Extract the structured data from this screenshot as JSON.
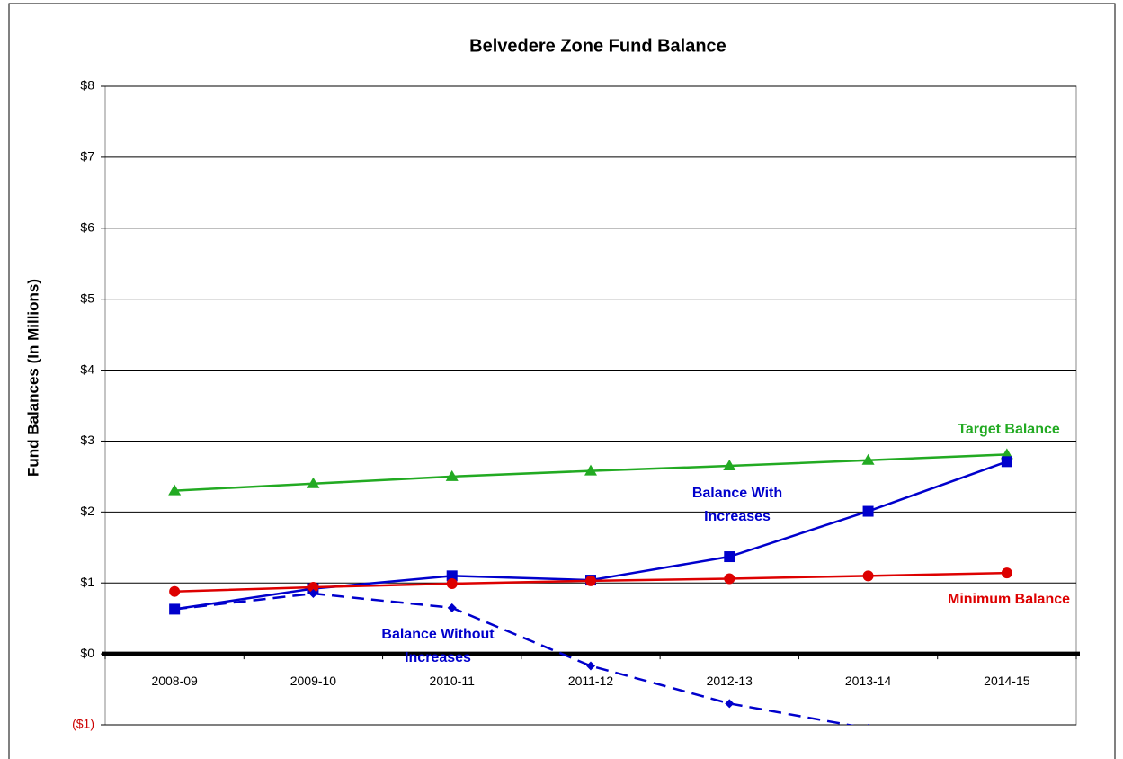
{
  "chart_data": {
    "type": "line",
    "title": "Belvedere Zone  Fund Balance",
    "y_label": "Fund Balances (In Millions)",
    "categories": [
      "2008-09",
      "2009-10",
      "2010-11",
      "2011-12",
      "2012-13",
      "2013-14",
      "2014-15"
    ],
    "series": [
      {
        "name": "Target Balance",
        "color": "#22aa22",
        "marker": "triangle",
        "dashed": false,
        "values": [
          2.3,
          2.4,
          2.5,
          2.58,
          2.65,
          2.73,
          2.81
        ]
      },
      {
        "name": "Balance With Increases",
        "color": "#0000cc",
        "marker": "square",
        "dashed": false,
        "values": [
          0.63,
          0.92,
          1.1,
          1.04,
          1.37,
          2.01,
          2.71
        ]
      },
      {
        "name": "Minimum Balance",
        "color": "#dd0000",
        "marker": "circle",
        "dashed": false,
        "values": [
          0.88,
          0.94,
          0.99,
          1.03,
          1.06,
          1.1,
          1.14
        ]
      },
      {
        "name": "Balance Without Increases",
        "color": "#0000cc",
        "marker": "diamond",
        "dashed": true,
        "values": [
          0.63,
          0.85,
          0.65,
          -0.17,
          -0.7,
          -1.05,
          null
        ]
      }
    ],
    "ylim": [
      -1,
      8
    ],
    "yticks": [
      {
        "value": -1,
        "label": "($1)"
      },
      {
        "value": 0,
        "label": "$0"
      },
      {
        "value": 1,
        "label": "$1"
      },
      {
        "value": 2,
        "label": "$2"
      },
      {
        "value": 3,
        "label": "$3"
      },
      {
        "value": 4,
        "label": "$4"
      },
      {
        "value": 5,
        "label": "$5"
      },
      {
        "value": 6,
        "label": "$6"
      },
      {
        "value": 7,
        "label": "$7"
      },
      {
        "value": 8,
        "label": "$8"
      }
    ],
    "negative_tick_color": "#cc0000",
    "grid": true
  }
}
